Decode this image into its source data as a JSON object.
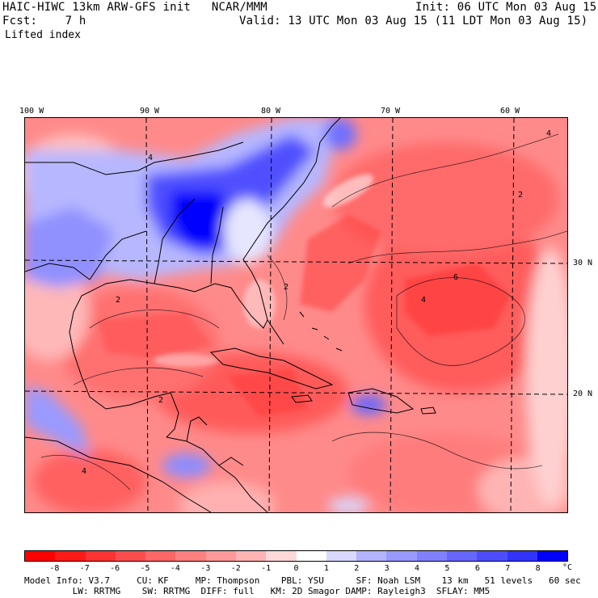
{
  "header": {
    "line1_left": "HAIC-HIWC 13km ARW-GFS init   NCAR/MMM",
    "line1_right": "Init: 06 UTC Mon 03 Aug 15",
    "line2_left": "Fcst:    7 h",
    "line2_right": "Valid: 13 UTC Mon 03 Aug 15 (11 LDT Mon 03 Aug 15)",
    "field": "Lifted index"
  },
  "map": {
    "lon_labels": [
      "100 W",
      "90 W",
      "80 W",
      "70 W",
      "60 W"
    ],
    "lat_labels": [
      "30 N",
      "20 N"
    ],
    "contour_labels": [
      "2",
      "4",
      "6"
    ]
  },
  "colorbar": {
    "labels": [
      "-8",
      "-7",
      "-6",
      "-5",
      "-4",
      "-3",
      "-2",
      "-1",
      "0",
      "1",
      "2",
      "3",
      "4",
      "5",
      "6",
      "7",
      "8"
    ],
    "unit": "°C",
    "colors": [
      "#ff0000",
      "#ff1a1a",
      "#ff3333",
      "#ff4d4d",
      "#ff6666",
      "#ff8080",
      "#ff9999",
      "#ffb3b3",
      "#ffd9d9",
      "#ffffff",
      "#d9d9ff",
      "#b3b3ff",
      "#9999ff",
      "#8080ff",
      "#6666ff",
      "#4d4dff",
      "#3333ff",
      "#0000ff"
    ]
  },
  "footer": {
    "line1": "Model Info: V3.7     CU: KF     MP: Thompson    PBL: YSU      SF: Noah LSM    13 km   51 levels   60 sec",
    "line2": "         LW: RRTMG    SW: RRTMG  DIFF: full   KM: 2D Smagor DAMP: Rayleigh3  SFLAY: MM5"
  }
}
